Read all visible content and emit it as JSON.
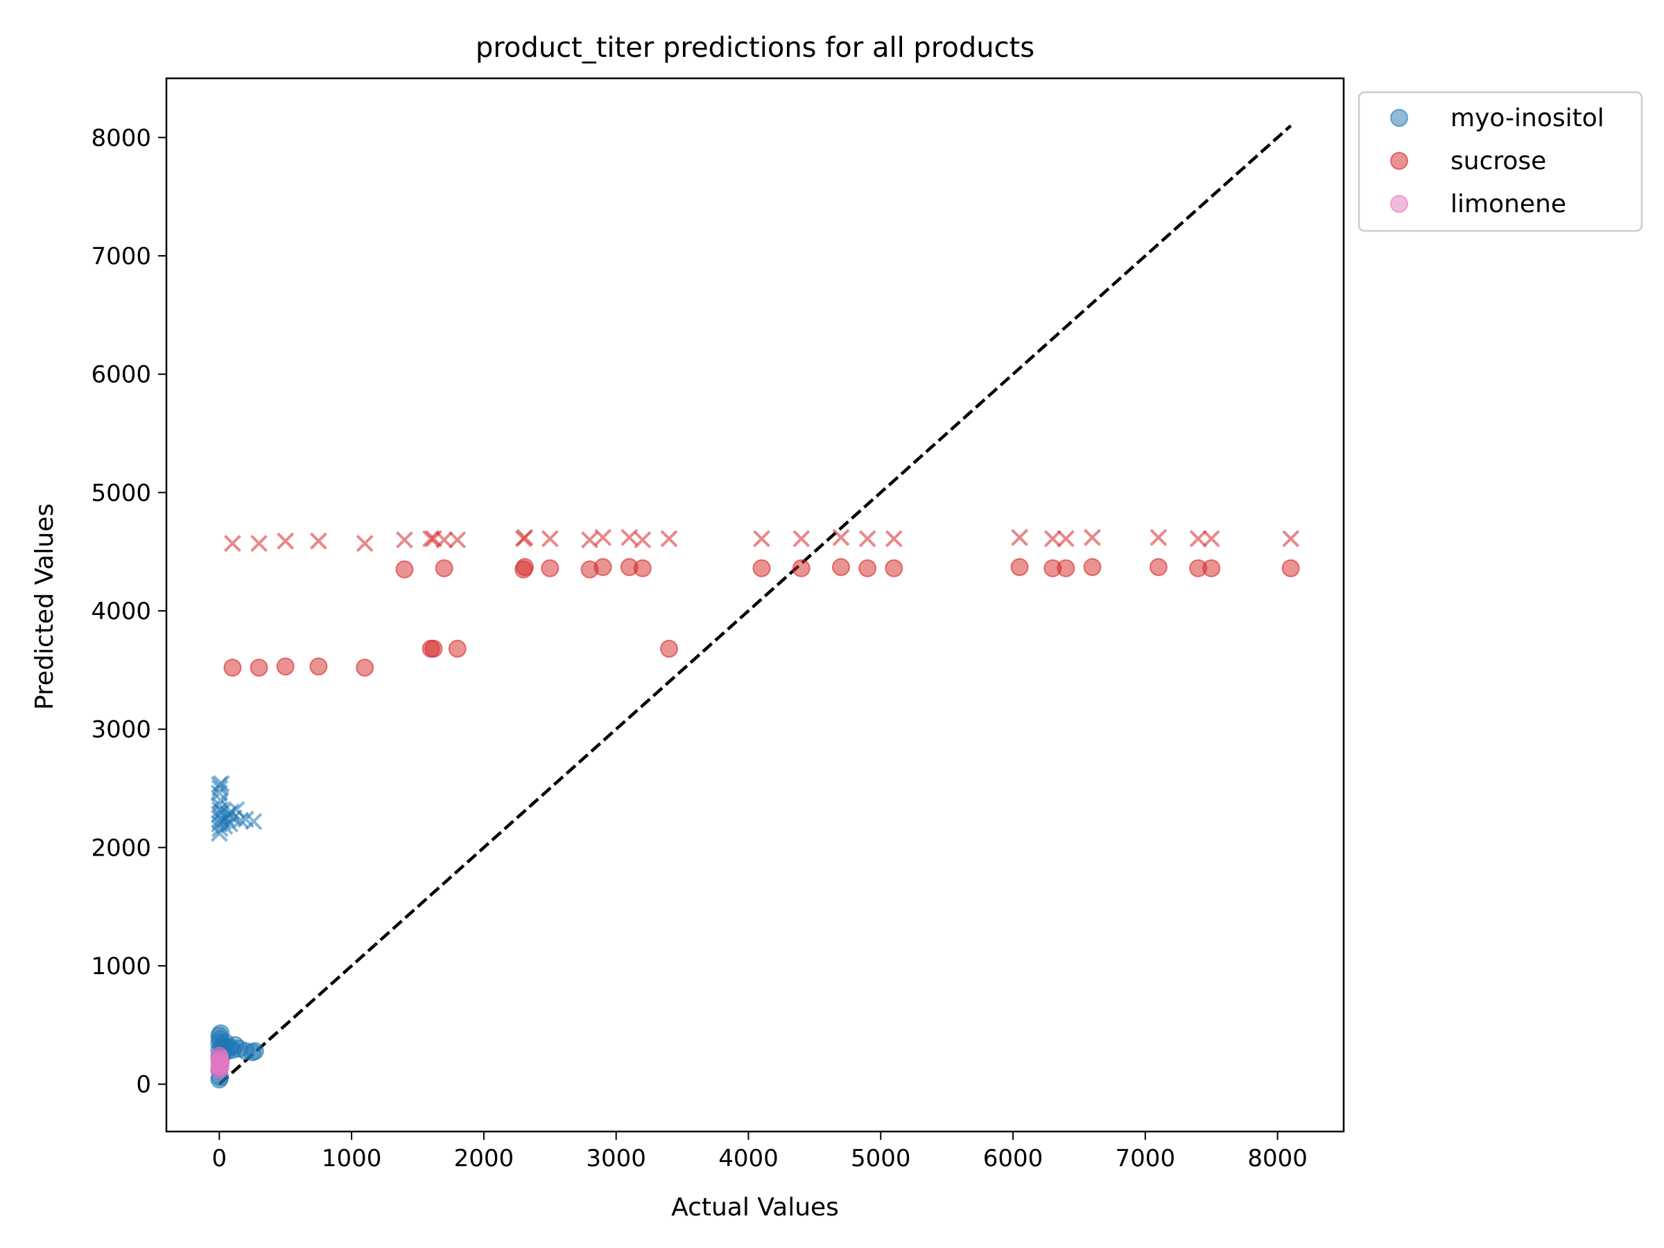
{
  "chart_data": {
    "type": "scatter",
    "title": "product_titer predictions for all products",
    "xlabel": "Actual Values",
    "ylabel": "Predicted Values",
    "xlim": [
      -400,
      8500
    ],
    "ylim": [
      -400,
      8500
    ],
    "xticks": [
      0,
      1000,
      2000,
      3000,
      4000,
      5000,
      6000,
      7000,
      8000
    ],
    "yticks": [
      0,
      1000,
      2000,
      3000,
      4000,
      5000,
      6000,
      7000,
      8000
    ],
    "grid": false,
    "legend_position": "outside top-right",
    "reference_line": {
      "style": "dashed",
      "color": "#000000",
      "from": [
        0,
        0
      ],
      "to": [
        8100,
        8100
      ]
    },
    "series": [
      {
        "name": "myo-inositol",
        "color": "#1f77b4",
        "circles": [
          [
            0,
            40
          ],
          [
            5,
            60
          ],
          [
            0,
            120
          ],
          [
            10,
            180
          ],
          [
            0,
            230
          ],
          [
            15,
            260
          ],
          [
            0,
            290
          ],
          [
            20,
            320
          ],
          [
            0,
            350
          ],
          [
            5,
            380
          ],
          [
            0,
            410
          ],
          [
            10,
            430
          ],
          [
            30,
            300
          ],
          [
            40,
            330
          ],
          [
            60,
            280
          ],
          [
            80,
            310
          ],
          [
            100,
            290
          ],
          [
            120,
            330
          ],
          [
            150,
            300
          ],
          [
            200,
            280
          ],
          [
            250,
            270
          ],
          [
            270,
            280
          ],
          [
            50,
            350
          ],
          [
            25,
            250
          ]
        ],
        "crosses": [
          [
            0,
            2120
          ],
          [
            5,
            2160
          ],
          [
            0,
            2200
          ],
          [
            10,
            2240
          ],
          [
            0,
            2280
          ],
          [
            5,
            2320
          ],
          [
            0,
            2360
          ],
          [
            10,
            2400
          ],
          [
            0,
            2460
          ],
          [
            5,
            2500
          ],
          [
            0,
            2530
          ],
          [
            15,
            2540
          ],
          [
            30,
            2220
          ],
          [
            50,
            2250
          ],
          [
            70,
            2280
          ],
          [
            90,
            2300
          ],
          [
            110,
            2250
          ],
          [
            130,
            2320
          ],
          [
            160,
            2230
          ],
          [
            200,
            2240
          ],
          [
            260,
            2220
          ],
          [
            40,
            2180
          ],
          [
            20,
            2300
          ],
          [
            80,
            2200
          ]
        ]
      },
      {
        "name": "sucrose",
        "color": "#d62728",
        "circles": [
          [
            100,
            3520
          ],
          [
            300,
            3520
          ],
          [
            500,
            3530
          ],
          [
            750,
            3530
          ],
          [
            1100,
            3520
          ],
          [
            1400,
            4350
          ],
          [
            1600,
            3680
          ],
          [
            1620,
            3680
          ],
          [
            1700,
            4360
          ],
          [
            1800,
            3680
          ],
          [
            2300,
            4350
          ],
          [
            2310,
            4370
          ],
          [
            2500,
            4360
          ],
          [
            2800,
            4350
          ],
          [
            2900,
            4370
          ],
          [
            3100,
            4370
          ],
          [
            3200,
            4360
          ],
          [
            3400,
            3680
          ],
          [
            4100,
            4360
          ],
          [
            4400,
            4360
          ],
          [
            4700,
            4370
          ],
          [
            4900,
            4360
          ],
          [
            5100,
            4360
          ],
          [
            6050,
            4370
          ],
          [
            6300,
            4360
          ],
          [
            6400,
            4360
          ],
          [
            6600,
            4370
          ],
          [
            7100,
            4370
          ],
          [
            7400,
            4360
          ],
          [
            7500,
            4360
          ],
          [
            8100,
            4360
          ]
        ],
        "crosses": [
          [
            100,
            4570
          ],
          [
            300,
            4570
          ],
          [
            500,
            4590
          ],
          [
            750,
            4590
          ],
          [
            1100,
            4570
          ],
          [
            1400,
            4600
          ],
          [
            1600,
            4610
          ],
          [
            1620,
            4610
          ],
          [
            1700,
            4600
          ],
          [
            1800,
            4600
          ],
          [
            2300,
            4610
          ],
          [
            2310,
            4620
          ],
          [
            2500,
            4610
          ],
          [
            2800,
            4600
          ],
          [
            2900,
            4620
          ],
          [
            3100,
            4620
          ],
          [
            3200,
            4600
          ],
          [
            3400,
            4610
          ],
          [
            4100,
            4610
          ],
          [
            4400,
            4610
          ],
          [
            4700,
            4620
          ],
          [
            4900,
            4610
          ],
          [
            5100,
            4610
          ],
          [
            6050,
            4620
          ],
          [
            6300,
            4610
          ],
          [
            6400,
            4610
          ],
          [
            6600,
            4620
          ],
          [
            7100,
            4620
          ],
          [
            7400,
            4610
          ],
          [
            7500,
            4610
          ],
          [
            8100,
            4610
          ]
        ]
      },
      {
        "name": "limonene",
        "color": "#e377c2",
        "circles": [
          [
            0,
            120
          ],
          [
            5,
            140
          ],
          [
            0,
            160
          ],
          [
            10,
            180
          ],
          [
            0,
            200
          ],
          [
            5,
            220
          ],
          [
            0,
            240
          ],
          [
            8,
            150
          ],
          [
            3,
            190
          ]
        ],
        "crosses": []
      }
    ]
  }
}
